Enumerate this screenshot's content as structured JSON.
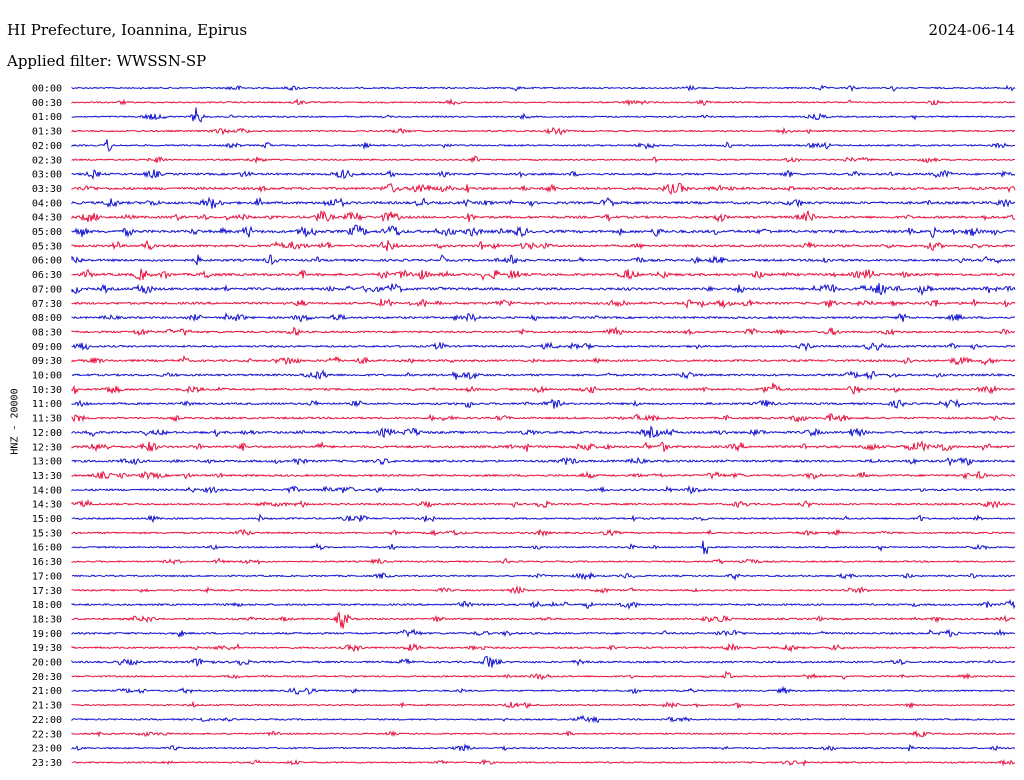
{
  "header": {
    "station": "HI Prefecture, Ioannina, Epirus",
    "date": "2024-06-14",
    "filter": "Applied filter: WWSSN-SP"
  },
  "axis_label": "HNZ - 20000",
  "colors": {
    "trace_a": "#1010d0",
    "trace_b": "#e8103c"
  },
  "chart_data": {
    "type": "line",
    "ylabel": "HNZ - 20000",
    "y_ticks": [
      "00:00",
      "00:30",
      "01:00",
      "01:30",
      "02:00",
      "02:30",
      "03:00",
      "03:30",
      "04:00",
      "04:30",
      "05:00",
      "05:30",
      "06:00",
      "06:30",
      "07:00",
      "07:30",
      "08:00",
      "08:30",
      "09:00",
      "09:30",
      "10:00",
      "10:30",
      "11:00",
      "11:30",
      "12:00",
      "12:30",
      "13:00",
      "13:30",
      "14:00",
      "14:30",
      "15:00",
      "15:30",
      "16:00",
      "16:30",
      "17:00",
      "17:30",
      "18:00",
      "18:30",
      "19:00",
      "19:30",
      "20:00",
      "20:30",
      "21:00",
      "21:30",
      "22:00",
      "22:30",
      "23:00",
      "23:30"
    ],
    "row_activity": [
      0.18,
      0.18,
      0.18,
      0.22,
      0.25,
      0.2,
      0.45,
      0.7,
      0.7,
      0.65,
      0.85,
      0.6,
      0.6,
      0.7,
      0.75,
      0.6,
      0.45,
      0.45,
      0.4,
      0.5,
      0.45,
      0.5,
      0.45,
      0.45,
      0.6,
      0.65,
      0.55,
      0.45,
      0.45,
      0.35,
      0.3,
      0.3,
      0.22,
      0.22,
      0.22,
      0.25,
      0.35,
      0.35,
      0.4,
      0.35,
      0.35,
      0.25,
      0.25,
      0.2,
      0.2,
      0.2,
      0.2,
      0.2
    ]
  }
}
